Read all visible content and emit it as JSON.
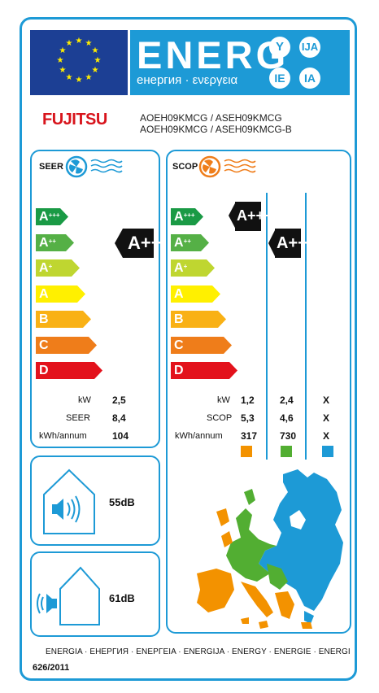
{
  "header": {
    "energy_word": "ENERG",
    "energy_sub": "енергия · ενεργεια",
    "lang_codes": [
      "Y",
      "IJA",
      "IE",
      "IA"
    ],
    "eu_flag_color": "#1c3f94",
    "accent_color": "#1d9ad6"
  },
  "product": {
    "brand": "FUJITSU",
    "model_line1": "AOEH09KMCG / ASEH09KMCG",
    "model_line2": "AOEH09KMCG / ASEH09KMCG-B"
  },
  "scale": {
    "classes": [
      "A+++",
      "A++",
      "A+",
      "A",
      "B",
      "C",
      "D"
    ],
    "colors": [
      "#1a9a45",
      "#55b046",
      "#bfd630",
      "#fff000",
      "#f9b115",
      "#ef7d1a",
      "#e3121c"
    ]
  },
  "seer": {
    "title": "SEER",
    "rating": "A++",
    "labels": {
      "kw": "kW",
      "seer": "SEER",
      "kwh": "kWh/annum"
    },
    "values": {
      "kw": "2,5",
      "seer": "8,4",
      "kwh": "104"
    }
  },
  "scop": {
    "title": "SCOP",
    "rating_warm": "A+++",
    "rating_average": "A++",
    "labels": {
      "kw": "kW",
      "scop": "SCOP",
      "kwh": "kWh/annum"
    },
    "columns": [
      {
        "kw": "1,2",
        "scop": "5,3",
        "kwh": "317",
        "color": "#f39200"
      },
      {
        "kw": "2,4",
        "scop": "4,6",
        "kwh": "730",
        "color": "#52ae32"
      },
      {
        "kw": "X",
        "scop": "X",
        "kwh": "X",
        "color": "#1d9ad6"
      }
    ]
  },
  "noise": {
    "indoor": "55dB",
    "outdoor": "61dB"
  },
  "footer": {
    "energy_words": "ENERGIA · ЕНЕРГИЯ · ΕΝΕΡΓΕΙΑ · ENERGIJA · ENERGY · ENERGIE · ENERGI",
    "regulation": "626/2011"
  }
}
